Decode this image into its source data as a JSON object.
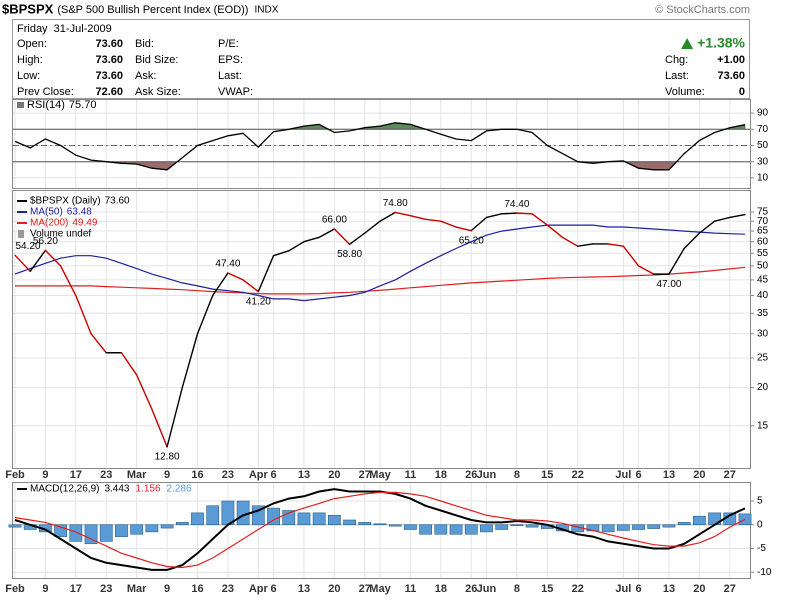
{
  "header": {
    "symbol": "$BPSPX",
    "name": "(S&P 500 Bullish Percent Index (EOD))",
    "exchange": "INDX",
    "source": "© StockCharts.com",
    "date": "Friday  31-Jul-2009",
    "quote": [
      [
        {
          "label": "Open:",
          "value": "73.60"
        },
        {
          "label": "High:",
          "value": "73.60"
        },
        {
          "label": "Low:",
          "value": "73.60"
        },
        {
          "label": "Prev Close:",
          "value": "72.60"
        }
      ],
      [
        {
          "label": "Bid:"
        },
        {
          "label": "Bid Size:"
        },
        {
          "label": "Ask:"
        },
        {
          "label": "Ask Size:"
        }
      ],
      [
        {
          "label": "P/E:"
        },
        {
          "label": "EPS:"
        },
        {
          "label": "Last:"
        },
        {
          "label": "VWAP:"
        }
      ]
    ],
    "change": "+1.38%",
    "stats": [
      {
        "label": "Chg:",
        "value": "+1.00"
      },
      {
        "label": "Last:",
        "value": "73.60"
      },
      {
        "label": "Volume:",
        "value": "0"
      }
    ]
  },
  "chart_data": [
    {
      "type": "line",
      "label": "RSI(14)",
      "value_label": "75.70",
      "color": "#000000",
      "values": [
        55,
        47,
        58,
        50,
        38,
        32,
        30,
        28,
        27,
        22,
        20,
        35,
        50,
        56,
        62,
        65,
        48,
        67,
        70,
        74,
        76,
        66,
        68,
        72,
        74,
        78,
        76,
        70,
        64,
        58,
        56,
        68,
        70,
        70,
        66,
        50,
        40,
        30,
        28,
        30,
        31,
        22,
        20,
        20,
        40,
        56,
        66,
        72,
        75.7
      ],
      "ylim": [
        0,
        100
      ],
      "yticks": [
        10,
        30,
        50,
        70,
        90
      ],
      "bands": [
        30,
        70
      ],
      "band_colors": [
        "#9c6b6b",
        "#5b8a5b"
      ],
      "midline": 50
    },
    {
      "type": "line",
      "log_scale": true,
      "note": "Volume undef",
      "categories": [
        "Feb",
        null,
        "9",
        null,
        "17",
        null,
        "23",
        null,
        "Mar",
        null,
        "9",
        null,
        "16",
        null,
        "23",
        null,
        "Apr",
        "6",
        null,
        "13",
        null,
        "20",
        null,
        "27",
        "May",
        null,
        "11",
        null,
        "18",
        null,
        "26",
        "Jun",
        null,
        "8",
        null,
        "15",
        null,
        "22",
        null,
        null,
        "Jul",
        "6",
        null,
        "13",
        null,
        "20",
        null,
        "27",
        null
      ],
      "ylim": [
        11,
        84
      ],
      "yticks": [
        15,
        20,
        25,
        30,
        35,
        40,
        45,
        50,
        55,
        60,
        65,
        70,
        75
      ],
      "series": [
        {
          "name": "$BPSPX (Daily)",
          "last_label": "73.60",
          "color": "#000000",
          "down_color": "#cc0000",
          "values": [
            54.2,
            48,
            56.2,
            50,
            40,
            30,
            26,
            26,
            22,
            17,
            12.8,
            20,
            30,
            40,
            47.4,
            45,
            41.2,
            54,
            56,
            60,
            62,
            66,
            58.8,
            64,
            70,
            74.8,
            73,
            71,
            70,
            67,
            65.2,
            72,
            74,
            74.4,
            74,
            68,
            62,
            58,
            59,
            59,
            58,
            50,
            47,
            47,
            57,
            64,
            70,
            72,
            73.6
          ],
          "value_labels": [
            "54.20",
            null,
            "56.20",
            null,
            null,
            null,
            null,
            null,
            null,
            null,
            "12.80",
            null,
            null,
            null,
            "47.40",
            null,
            "41.20",
            null,
            null,
            null,
            null,
            "66.00",
            "58.80",
            null,
            null,
            "74.80",
            null,
            null,
            null,
            null,
            "65.20",
            null,
            null,
            "74.40",
            null,
            null,
            null,
            null,
            null,
            null,
            null,
            null,
            null,
            "47.00",
            null,
            null,
            null,
            null,
            null
          ]
        },
        {
          "name": "MA(50)",
          "color": "#1f1f9f",
          "values": [
            47,
            49,
            51,
            53,
            54,
            54,
            53,
            51,
            49,
            47,
            45.5,
            44,
            43,
            42,
            41.5,
            41,
            40,
            39,
            39,
            38.5,
            39,
            39.5,
            40,
            41,
            43,
            45,
            48,
            51,
            54,
            57,
            60,
            63,
            65,
            66,
            67,
            68,
            68,
            68,
            68,
            67,
            67,
            66.5,
            66,
            65.5,
            65,
            64.5,
            64,
            63.7,
            63.48
          ]
        },
        {
          "name": "MA(200)",
          "color": "#e02020",
          "values": [
            43,
            43,
            43,
            43,
            43,
            43,
            42.8,
            42.6,
            42.4,
            42.2,
            42,
            41.8,
            41.5,
            41.2,
            41,
            40.8,
            40.6,
            40.5,
            40.5,
            40.5,
            40.6,
            40.8,
            41,
            41.3,
            41.6,
            42,
            42.4,
            42.8,
            43.2,
            43.6,
            44,
            44.3,
            44.6,
            44.9,
            45.2,
            45.5,
            45.7,
            45.9,
            46,
            46.1,
            46.3,
            46.5,
            46.7,
            47,
            47.4,
            47.8,
            48.3,
            48.9,
            49.49
          ]
        }
      ]
    },
    {
      "type": "combo",
      "label": "MACD(12,26,9)",
      "categories": [
        "Feb",
        null,
        "9",
        null,
        "17",
        null,
        "23",
        null,
        "Mar",
        null,
        "9",
        null,
        "16",
        null,
        "23",
        null,
        "Apr",
        "6",
        null,
        "13",
        null,
        "20",
        null,
        "27",
        "May",
        null,
        "11",
        null,
        "18",
        null,
        "26",
        "Jun",
        null,
        "8",
        null,
        "15",
        null,
        "22",
        null,
        null,
        "Jul",
        "6",
        null,
        "13",
        null,
        "20",
        null,
        "27",
        null
      ],
      "ylim": [
        -11,
        9
      ],
      "yticks": [
        5,
        0,
        -5,
        -10
      ],
      "series": [
        {
          "kind": "line",
          "color": "#000000",
          "values": [
            1,
            0,
            -1,
            -3,
            -5,
            -7,
            -8,
            -8.5,
            -9,
            -9.5,
            -9.5,
            -8.5,
            -6,
            -3,
            0,
            2,
            3,
            4.5,
            5.5,
            6,
            7,
            7.5,
            7,
            7,
            7,
            6.5,
            5.5,
            4,
            3,
            2,
            1,
            0.5,
            0.5,
            0.8,
            0.5,
            0,
            -1,
            -2,
            -2.5,
            -3.5,
            -4,
            -4.5,
            -5,
            -5,
            -4,
            -2,
            0,
            2,
            3.443
          ]
        },
        {
          "kind": "line",
          "color": "#e02020",
          "values": [
            1.5,
            1,
            0.5,
            -0.5,
            -1.5,
            -3,
            -4.5,
            -6,
            -7,
            -8,
            -8.8,
            -9,
            -8.5,
            -7,
            -5,
            -3,
            -1,
            1,
            2.5,
            3.5,
            4.5,
            5.5,
            6,
            6.5,
            6.8,
            6.8,
            6.5,
            6,
            5,
            4,
            3,
            2,
            1.5,
            1,
            1,
            0.8,
            0.3,
            -0.5,
            -1.2,
            -2,
            -2.8,
            -3.5,
            -4.2,
            -4.5,
            -4.5,
            -3.8,
            -2.5,
            -0.5,
            1.156
          ]
        },
        {
          "kind": "bar",
          "color": "#5b9bd5",
          "values": [
            -0.5,
            -1,
            -1.5,
            -2.5,
            -3.5,
            -4,
            -3.5,
            -2.5,
            -2,
            -1.5,
            -0.7,
            0.5,
            2.5,
            4,
            5,
            5,
            4,
            3.5,
            3,
            2.5,
            2.5,
            2,
            1,
            0.5,
            0.2,
            -0.3,
            -1,
            -2,
            -2,
            -2,
            -2,
            -1.5,
            -1,
            -0.2,
            -0.5,
            -0.8,
            -1.3,
            -1.5,
            -1.3,
            -1.5,
            -1.2,
            -1,
            -0.8,
            -0.5,
            0.5,
            1.8,
            2.5,
            2.5,
            2.286
          ]
        }
      ]
    }
  ]
}
